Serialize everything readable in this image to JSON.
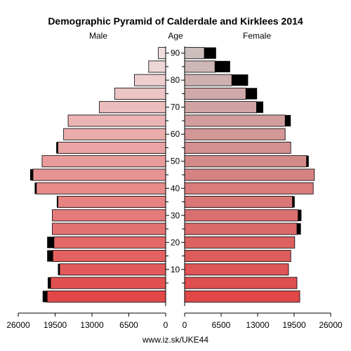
{
  "chart_data": {
    "type": "bar",
    "title": "Demographic Pyramid of Calderdale and Kirklees 2014",
    "left_label": "Male",
    "center_label": "Age",
    "right_label": "Female",
    "footer": "www.iz.sk/UKE44",
    "x_ticks_left": [
      "26000",
      "19500",
      "13000",
      "6500",
      "0"
    ],
    "x_ticks_right": [
      "0",
      "6500",
      "13000",
      "19500",
      "26000"
    ],
    "x_tick_values": [
      26000,
      19500,
      13000,
      6500,
      0
    ],
    "xlim": [
      0,
      26000
    ],
    "age_ticks": [
      10,
      20,
      30,
      40,
      50,
      60,
      70,
      80,
      90
    ],
    "age_groups": [
      "0-4",
      "5-9",
      "10-14",
      "15-19",
      "20-24",
      "25-29",
      "30-34",
      "35-39",
      "40-44",
      "45-49",
      "50-54",
      "55-59",
      "60-64",
      "65-69",
      "70-74",
      "75-79",
      "80-84",
      "85-89",
      "90+"
    ],
    "series": [
      {
        "name": "Male",
        "values": [
          20900,
          20300,
          18700,
          19900,
          19700,
          20000,
          20000,
          19000,
          22800,
          23400,
          21800,
          19000,
          18000,
          17200,
          11700,
          9000,
          5500,
          3000,
          1300
        ],
        "highlight": [
          800,
          500,
          300,
          1000,
          1200,
          0,
          0,
          200,
          300,
          500,
          0,
          300,
          0,
          0,
          0,
          0,
          0,
          0,
          0
        ]
      },
      {
        "name": "Female",
        "values": [
          20500,
          20000,
          18500,
          18900,
          19600,
          20000,
          20200,
          19200,
          22900,
          23100,
          21700,
          18900,
          17900,
          17900,
          12800,
          10900,
          8400,
          5400,
          3500
        ],
        "highlight": [
          0,
          0,
          0,
          0,
          0,
          700,
          600,
          400,
          0,
          0,
          400,
          0,
          0,
          1000,
          1200,
          2000,
          2900,
          2700,
          2100
        ]
      }
    ]
  }
}
